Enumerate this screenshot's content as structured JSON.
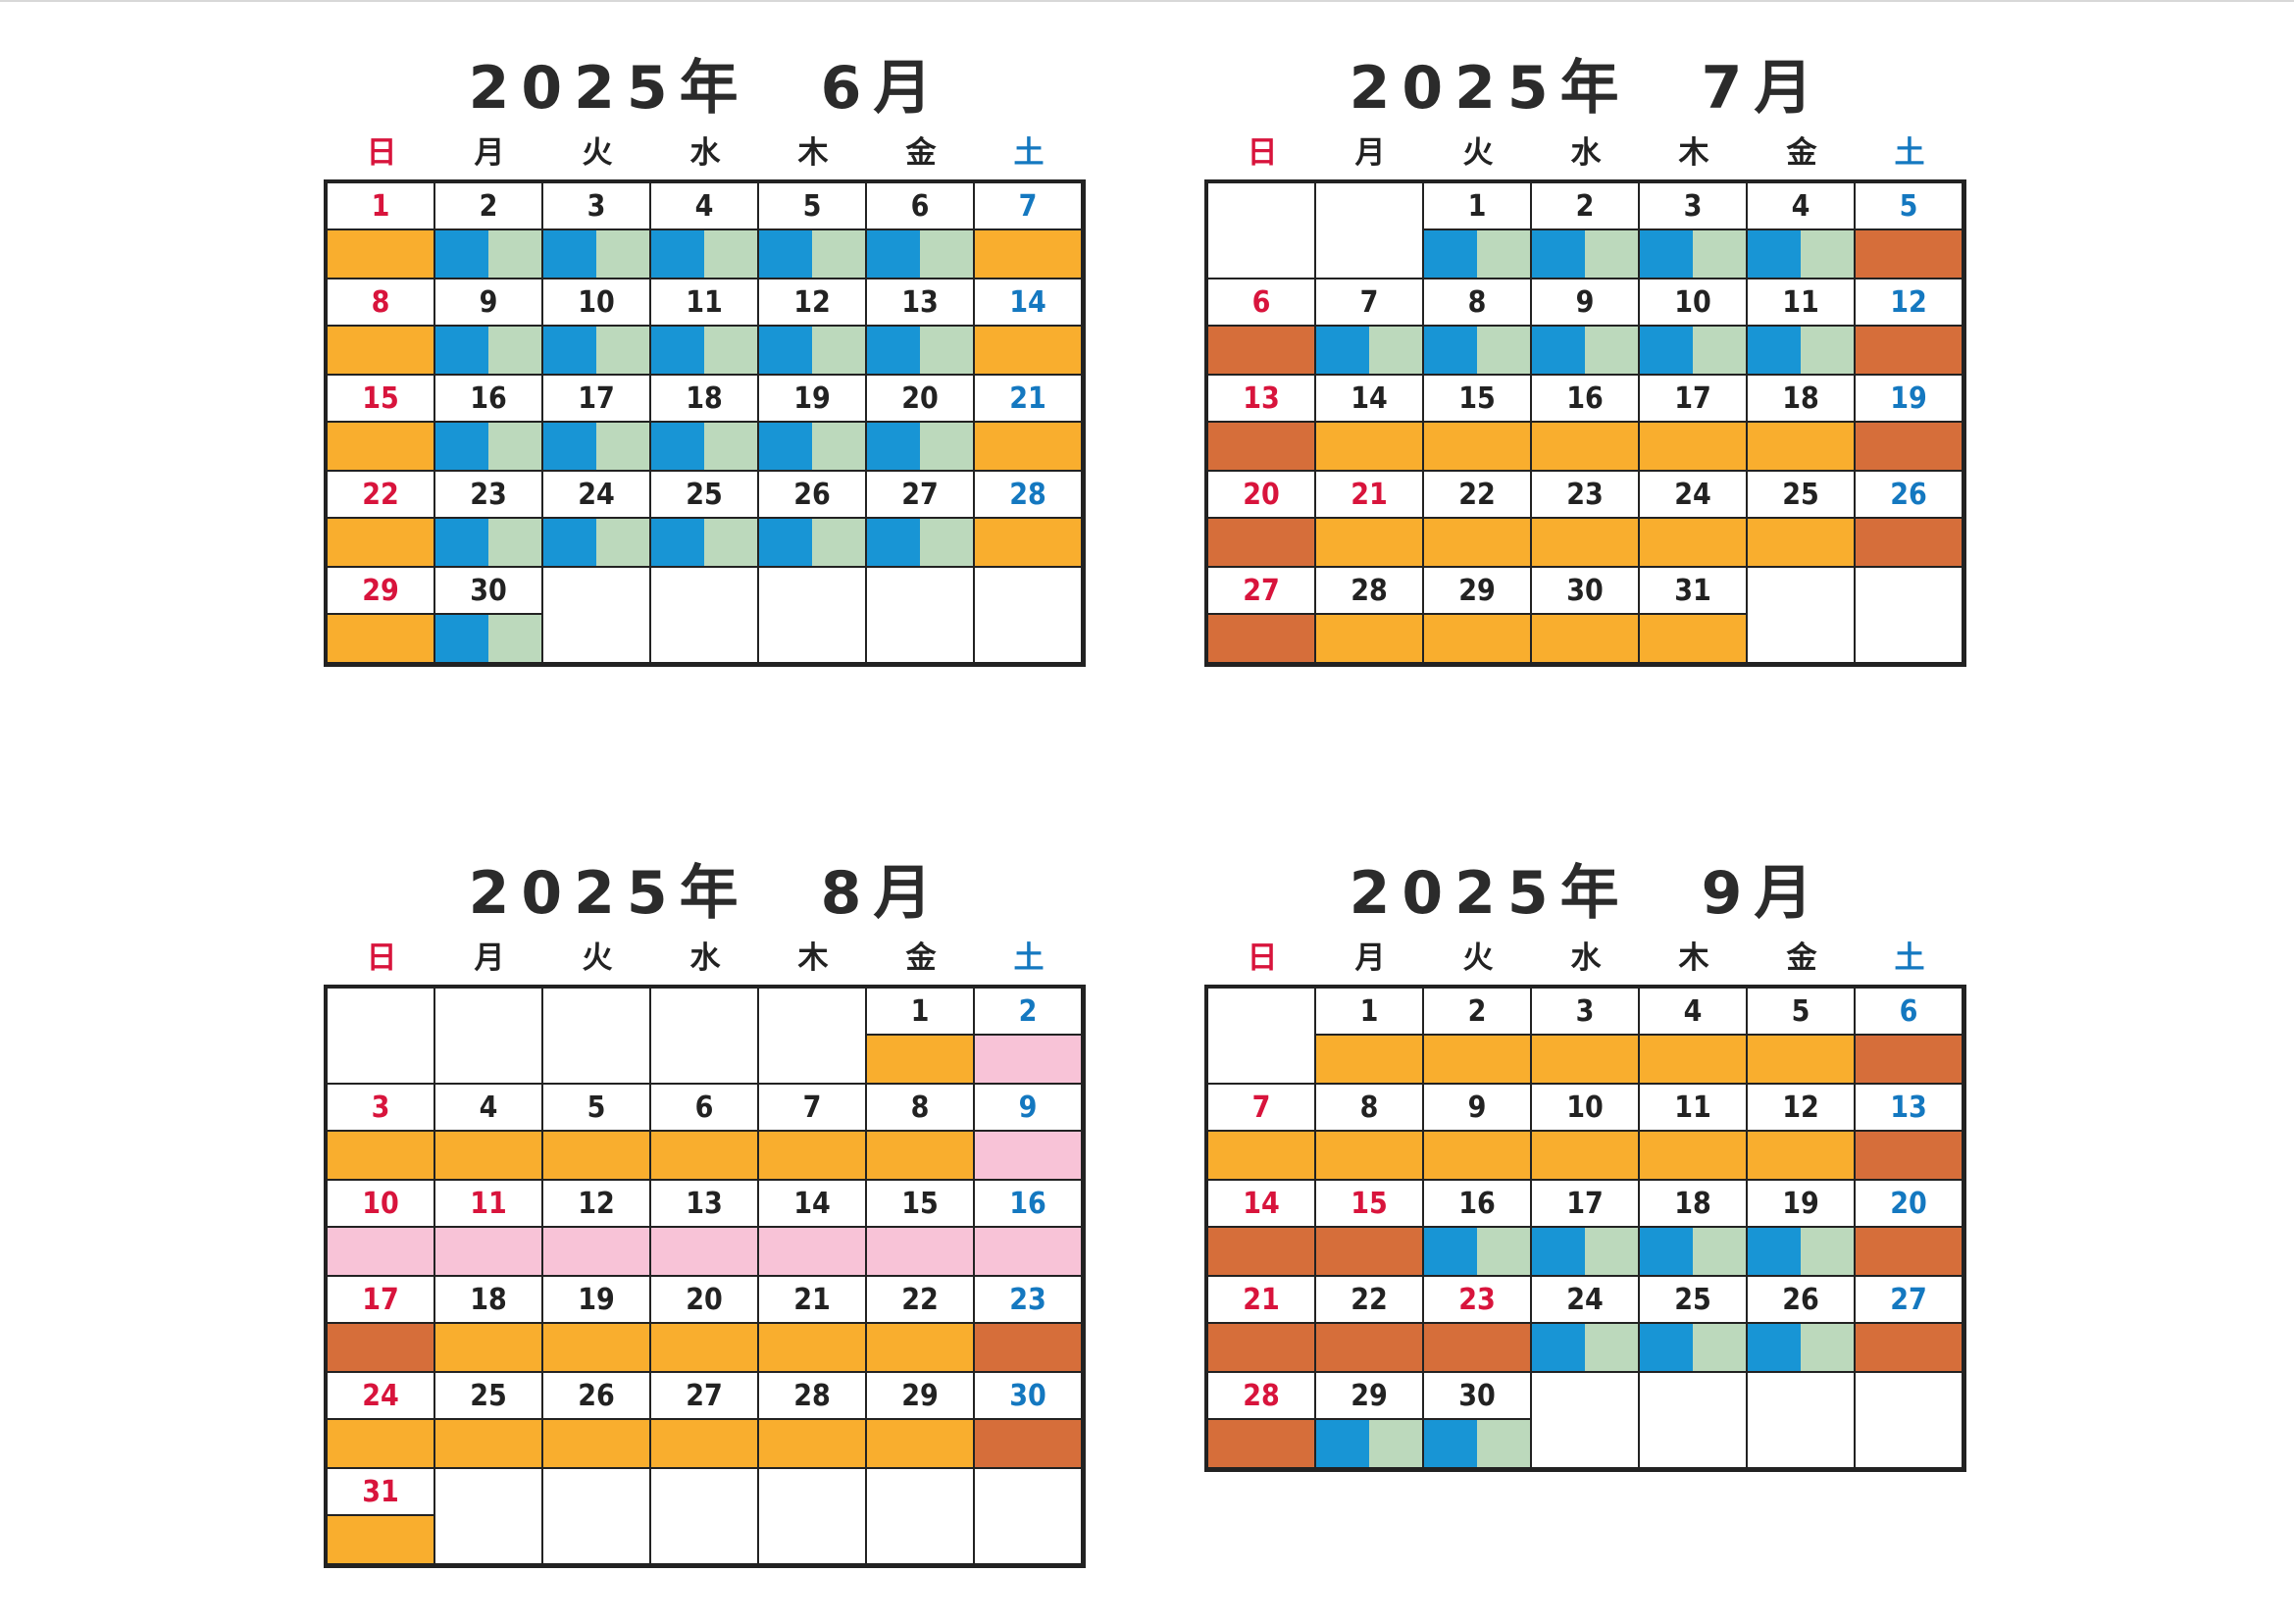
{
  "weekdays": [
    "日",
    "月",
    "火",
    "水",
    "木",
    "金",
    "土"
  ],
  "calendars": [
    {
      "id": "june",
      "title": "2025年　6月",
      "first_weekday": 0,
      "days": 30,
      "holidays": [],
      "bands": [
        "orange",
        "split",
        "split",
        "split",
        "split",
        "split",
        "orange",
        "orange",
        "split",
        "split",
        "split",
        "split",
        "split",
        "orange",
        "orange",
        "split",
        "split",
        "split",
        "split",
        "split",
        "orange",
        "orange",
        "split",
        "split",
        "split",
        "split",
        "split",
        "orange",
        "orange",
        "split"
      ]
    },
    {
      "id": "july",
      "title": "2025年　7月",
      "first_weekday": 2,
      "days": 31,
      "holidays": [
        21
      ],
      "bands": [
        "split",
        "split",
        "split",
        "split",
        "dark",
        "dark",
        "split",
        "split",
        "split",
        "split",
        "split",
        "dark",
        "dark",
        "orange",
        "orange",
        "orange",
        "orange",
        "orange",
        "dark",
        "dark",
        "orange",
        "orange",
        "orange",
        "orange",
        "orange",
        "dark",
        "dark",
        "orange",
        "orange",
        "orange",
        "orange"
      ]
    },
    {
      "id": "august",
      "title": "2025年　8月",
      "first_weekday": 5,
      "days": 31,
      "holidays": [
        11
      ],
      "bands": [
        "orange",
        "pink",
        "orange",
        "orange",
        "orange",
        "orange",
        "orange",
        "orange",
        "pink",
        "pink",
        "pink",
        "pink",
        "pink",
        "pink",
        "pink",
        "pink",
        "dark",
        "orange",
        "orange",
        "orange",
        "orange",
        "orange",
        "dark",
        "orange",
        "orange",
        "orange",
        "orange",
        "orange",
        "orange",
        "dark",
        "orange"
      ]
    },
    {
      "id": "september",
      "title": "2025年　9月",
      "first_weekday": 1,
      "days": 30,
      "holidays": [
        15,
        23
      ],
      "bands": [
        "orange",
        "orange",
        "orange",
        "orange",
        "orange",
        "dark",
        "orange",
        "orange",
        "orange",
        "orange",
        "orange",
        "orange",
        "dark",
        "dark",
        "dark",
        "split",
        "split",
        "split",
        "split",
        "dark",
        "dark",
        "dark",
        "dark",
        "split",
        "split",
        "split",
        "dark",
        "dark",
        "split",
        "split"
      ]
    }
  ]
}
